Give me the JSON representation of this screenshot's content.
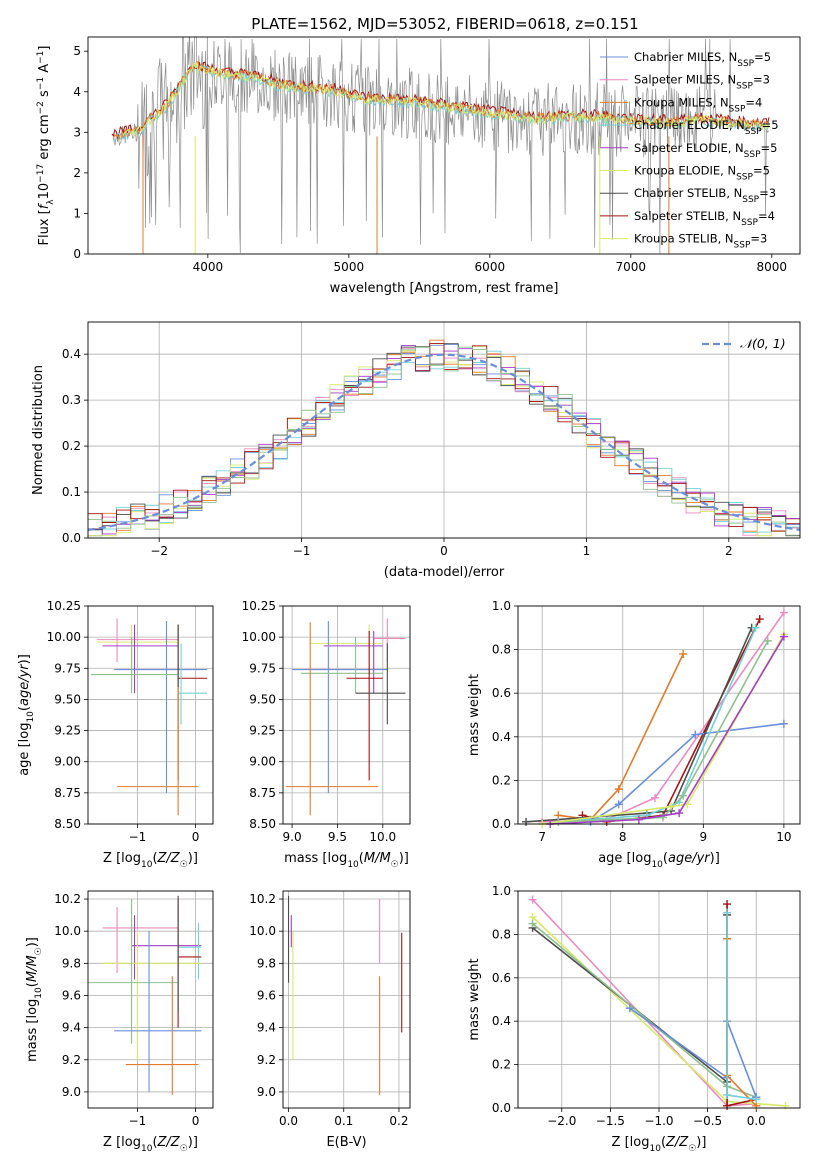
{
  "figure_title": "PLATE=1562, MJD=53052, FIBERID=0618, z=0.151",
  "colors": {
    "blue": "#6a8fd8",
    "pink": "#e98bbf",
    "orange": "#e07b2e",
    "teal": "#72d1d6",
    "purple": "#a23fc5",
    "lime": "#d8e86a",
    "darkgray": "#4d4d4d",
    "darkred": "#a31416",
    "sage": "#8fbf8f",
    "gray": "#8c8c8c",
    "grid": "#b0b0b0"
  },
  "chart_data": [
    {
      "id": "spectrum",
      "type": "line",
      "title": "PLATE=1562, MJD=53052, FIBERID=0618, z=0.151",
      "xlabel": "wavelength [Angstrom, rest frame]",
      "ylabel": "Flux [f_λ 10^-17 erg cm^-2 s^-1 A^-1]",
      "xlim": [
        3150,
        8200
      ],
      "ylim": [
        0,
        5.35
      ],
      "xticks": [
        4000,
        5000,
        6000,
        7000,
        8000
      ],
      "yticks": [
        0,
        1,
        2,
        3,
        4,
        5
      ],
      "grid": false,
      "legend_position": "top-right",
      "legend": [
        {
          "label": "Chabrier MILES, N",
          "sub": "SSP",
          "suffix": "=5",
          "color": "blue"
        },
        {
          "label": "Salpeter MILES, N",
          "sub": "SSP",
          "suffix": "=3",
          "color": "pink"
        },
        {
          "label": "Kroupa MILES, N",
          "sub": "SSP",
          "suffix": "=4",
          "color": "orange"
        },
        {
          "label": "Chabrier ELODIE, N",
          "sub": "SSP",
          "suffix": "=5",
          "color": "teal"
        },
        {
          "label": "Salpeter ELODIE, N",
          "sub": "SSP",
          "suffix": "=5",
          "color": "purple"
        },
        {
          "label": "Kroupa ELODIE, N",
          "sub": "SSP",
          "suffix": "=5",
          "color": "lime"
        },
        {
          "label": "Chabrier STELIB, N",
          "sub": "SSP",
          "suffix": "=3",
          "color": "darkgray"
        },
        {
          "label": "Salpeter STELIB, N",
          "sub": "SSP",
          "suffix": "=4",
          "color": "darkred"
        },
        {
          "label": "Kroupa STELIB, N",
          "sub": "SSP",
          "suffix": "=3",
          "color": "lime"
        }
      ],
      "continuum_x": [
        3300,
        3500,
        3700,
        3900,
        4100,
        4300,
        4500,
        4700,
        4900,
        5100,
        5300,
        5500,
        5700,
        5900,
        6100,
        6300,
        6500,
        6700,
        6900,
        7100,
        7300,
        7500,
        7700,
        7900
      ],
      "continuum_y": [
        2.85,
        3.0,
        3.6,
        4.6,
        4.4,
        4.35,
        4.15,
        4.05,
        4.0,
        3.8,
        3.75,
        3.7,
        3.6,
        3.5,
        3.4,
        3.3,
        3.35,
        3.35,
        3.3,
        3.25,
        3.2,
        3.3,
        3.2,
        3.15
      ]
    },
    {
      "id": "residuals",
      "type": "bar",
      "xlabel": "(data-model)/error",
      "ylabel": "Normed distribution",
      "xlim": [
        -2.5,
        2.5
      ],
      "ylim": [
        0,
        0.47
      ],
      "xticks": [
        -2,
        -1,
        0,
        1,
        2
      ],
      "yticks": [
        0.0,
        0.1,
        0.2,
        0.3,
        0.4
      ],
      "grid": true,
      "legend_position": "top-right",
      "legend_label": "𝒩(0, 1)",
      "bin_width": 0.1
    },
    {
      "id": "age_vs_Z",
      "type": "scatter",
      "xlabel": "Z [log10(Z/Z☉)]",
      "ylabel": "age [log10(age/yr)]",
      "xlim": [
        -1.85,
        0.3
      ],
      "ylim": [
        8.5,
        10.25
      ],
      "xticks": [
        -1,
        0
      ],
      "yticks": [
        8.5,
        8.75,
        9.0,
        9.25,
        9.5,
        9.75,
        10.0,
        10.25
      ],
      "grid": true
    },
    {
      "id": "age_vs_mass",
      "type": "scatter",
      "xlabel": "mass [log10(M/M☉)]",
      "ylabel": "",
      "xlim": [
        8.9,
        10.3
      ],
      "ylim": [
        8.5,
        10.25
      ],
      "xticks": [
        9.0,
        9.5,
        10.0
      ],
      "yticks": [
        8.5,
        8.75,
        9.0,
        9.25,
        9.5,
        9.75,
        10.0,
        10.25
      ],
      "grid": true
    },
    {
      "id": "weight_vs_age",
      "type": "line",
      "xlabel": "age [log10(age/yr)]",
      "ylabel": "mass weight",
      "xlim": [
        6.7,
        10.2
      ],
      "ylim": [
        0,
        1.0
      ],
      "xticks": [
        7,
        8,
        9,
        10
      ],
      "yticks": [
        0.0,
        0.2,
        0.4,
        0.6,
        0.8,
        1.0
      ],
      "grid": true,
      "series": [
        {
          "color": "orange",
          "x": [
            7.2,
            7.6,
            7.95,
            8.75
          ],
          "y": [
            0.04,
            0.02,
            0.16,
            0.78
          ]
        },
        {
          "color": "pink",
          "x": [
            7.0,
            7.8,
            8.4,
            10.0
          ],
          "y": [
            0.01,
            0.02,
            0.12,
            0.97
          ]
        },
        {
          "color": "darkred",
          "x": [
            7.5,
            7.8,
            8.5,
            9.7
          ],
          "y": [
            0.04,
            0.01,
            0.04,
            0.94
          ]
        },
        {
          "color": "blue",
          "x": [
            7.6,
            7.95,
            8.9,
            10.0
          ],
          "y": [
            0.01,
            0.09,
            0.41,
            0.46
          ]
        },
        {
          "color": "darkgray",
          "x": [
            6.8,
            8.3,
            8.6,
            9.6
          ],
          "y": [
            0.01,
            0.05,
            0.06,
            0.9
          ]
        },
        {
          "color": "teal",
          "x": [
            7.2,
            8.3,
            8.7,
            9.65
          ],
          "y": [
            0.01,
            0.04,
            0.1,
            0.9
          ]
        },
        {
          "color": "sage",
          "x": [
            7.2,
            8.5,
            8.75,
            9.8
          ],
          "y": [
            0.01,
            0.03,
            0.13,
            0.84
          ]
        },
        {
          "color": "lime",
          "x": [
            7.0,
            8.6,
            8.8,
            10.0
          ],
          "y": [
            0.0,
            0.08,
            0.09,
            0.87
          ]
        },
        {
          "color": "purple",
          "x": [
            7.1,
            8.2,
            8.7,
            10.0
          ],
          "y": [
            0.0,
            0.02,
            0.05,
            0.86
          ]
        }
      ]
    },
    {
      "id": "mass_vs_Z",
      "type": "scatter",
      "xlabel": "Z [log10(Z/Z☉)]",
      "ylabel": "mass [log10(M/M☉)]",
      "xlim": [
        -1.85,
        0.3
      ],
      "ylim": [
        8.9,
        10.25
      ],
      "xticks": [
        -1,
        0
      ],
      "yticks": [
        9.0,
        9.2,
        9.4,
        9.6,
        9.8,
        10.0,
        10.2
      ],
      "grid": true
    },
    {
      "id": "mass_vs_ebv",
      "type": "scatter",
      "xlabel": "E(B-V)",
      "ylabel": "",
      "xlim": [
        -0.01,
        0.22
      ],
      "ylim": [
        8.9,
        10.25
      ],
      "xticks": [
        0.0,
        0.1,
        0.2
      ],
      "yticks": [
        9.0,
        9.2,
        9.4,
        9.6,
        9.8,
        10.0,
        10.2
      ],
      "grid": true
    },
    {
      "id": "weight_vs_Z",
      "type": "line",
      "xlabel": "Z [log10(Z/Z☉)]",
      "ylabel": "mass weight",
      "xlim": [
        -2.45,
        0.45
      ],
      "ylim": [
        0,
        1.0
      ],
      "xticks": [
        -2.0,
        -1.5,
        -1.0,
        -0.5,
        0.0
      ],
      "yticks": [
        0.0,
        0.2,
        0.4,
        0.6,
        0.8,
        1.0
      ],
      "grid": true,
      "series": [
        {
          "color": "pink",
          "x": [
            -2.3,
            -0.3,
            0.0
          ],
          "y": [
            0.96,
            0.01,
            0.02
          ]
        },
        {
          "color": "lime",
          "x": [
            -2.3,
            -0.3,
            0.3
          ],
          "y": [
            0.88,
            0.03,
            0.01
          ]
        },
        {
          "color": "darkgray",
          "x": [
            -2.3,
            -0.3,
            -0.3
          ],
          "y": [
            0.83,
            0.12,
            0.89
          ]
        },
        {
          "color": "sage",
          "x": [
            -2.3,
            -0.3,
            0.0
          ],
          "y": [
            0.85,
            0.1,
            0.05
          ]
        },
        {
          "color": "blue",
          "x": [
            -1.3,
            -0.3,
            -0.3,
            0.0
          ],
          "y": [
            0.46,
            0.14,
            0.4,
            0.05
          ]
        },
        {
          "color": "darkred",
          "x": [
            -0.3,
            -0.3,
            0.0
          ],
          "y": [
            0.94,
            0.01,
            0.04
          ]
        },
        {
          "color": "orange",
          "x": [
            -0.3,
            -0.3,
            0.0
          ],
          "y": [
            0.78,
            0.15,
            0.01
          ]
        },
        {
          "color": "teal",
          "x": [
            -0.3,
            -0.3,
            0.0
          ],
          "y": [
            0.9,
            0.06,
            0.04
          ]
        }
      ]
    }
  ]
}
